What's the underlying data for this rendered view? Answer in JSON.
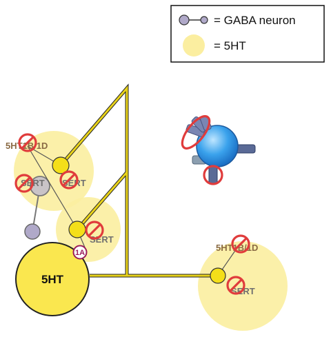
{
  "legend": {
    "gaba_label": "= GABA neuron",
    "serotonin_label": "= 5HT"
  },
  "diagram": {
    "cell_body_label": "5HT",
    "autoreceptor_1a_label": "1A",
    "terminals": [
      {
        "receptor_label": "5HT1B/1D",
        "transporter_label": "SERT"
      },
      {
        "receptor_label": "",
        "transporter_label": "SERT"
      },
      {
        "receptor_label": "",
        "transporter_label": "SERT"
      },
      {
        "receptor_label": "5HT1B/1D",
        "transporter_label": "SERT"
      }
    ]
  },
  "colors": {
    "serotonin_cloud": "#fbeea0",
    "axon": "#e8d21a",
    "gaba": "#b0a9c9",
    "block": "#e03c3c",
    "postsynaptic": "#3a9ee8",
    "receptor_stub": "#5a6a96"
  }
}
